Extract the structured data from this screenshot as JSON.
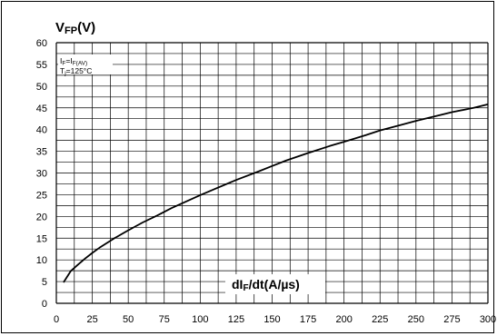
{
  "chart_data": {
    "type": "line",
    "title": "VFP(V)",
    "xlabel": "dIF/dt(A/µs)",
    "ylabel": "VFP(V)",
    "xlim": [
      0,
      300
    ],
    "ylim": [
      0,
      60
    ],
    "x_ticks": [
      "0",
      "25",
      "50",
      "75",
      "100",
      "125",
      "150",
      "175",
      "200",
      "225",
      "250",
      "275",
      "300"
    ],
    "y_ticks": [
      "0",
      "5",
      "10",
      "15",
      "20",
      "25",
      "30",
      "35",
      "40",
      "45",
      "50",
      "55",
      "60"
    ],
    "conditions": [
      "IF=IF(AV)",
      "Tj=125°C"
    ],
    "grid": true,
    "series": [
      {
        "x": [
          5,
          10,
          15,
          20,
          25,
          30,
          40,
          50,
          60,
          70,
          80,
          90,
          100,
          110,
          125,
          140,
          150,
          160,
          175,
          190,
          200,
          215,
          225,
          240,
          250,
          265,
          275,
          290,
          300
        ],
        "y": [
          4.8,
          7.4,
          8.9,
          10.3,
          11.6,
          12.8,
          14.9,
          16.8,
          18.6,
          20.2,
          21.9,
          23.4,
          24.9,
          26.3,
          28.4,
          30.3,
          31.6,
          32.9,
          34.6,
          36.2,
          37.2,
          38.7,
          39.8,
          41.1,
          42.0,
          43.2,
          44.0,
          45.0,
          45.8
        ]
      }
    ],
    "colors": {
      "line": "#000000",
      "grid": "#000000",
      "background": "#ffffff"
    }
  }
}
